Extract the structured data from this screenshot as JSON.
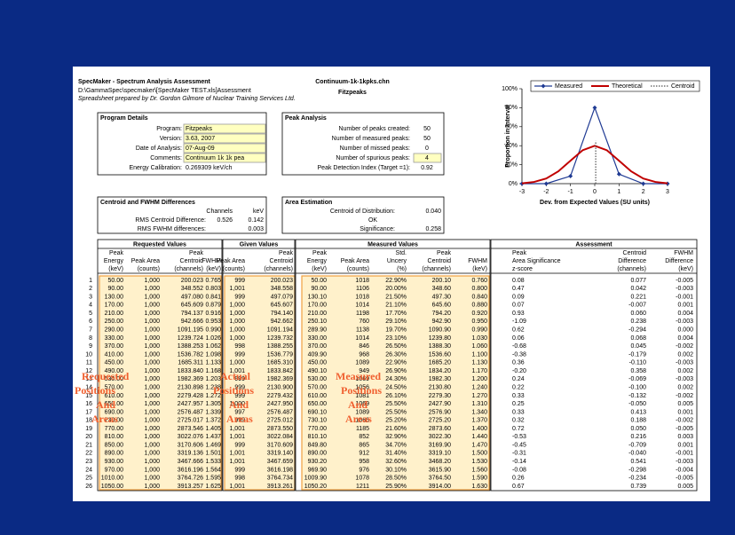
{
  "header": {
    "title": "SpecMaker - Spectrum Analysis Assessment",
    "path": "D:\\GammaSpec\\specmaker\\[SpecMaker TEST.xls]Assessment",
    "credit": "Spreadsheet prepared by Dr. Gordon Gilmore of Nuclear Training Services Ltd.",
    "file": "Continuum-1k-1kpks.chn",
    "program": "Fitzpeaks"
  },
  "program_details": {
    "title": "Program Details",
    "rows": [
      [
        "Program:",
        "Fitzpeaks"
      ],
      [
        "Version:",
        "3.63, 2007"
      ],
      [
        "Date of Analysis:",
        "07-Aug-09"
      ],
      [
        "Comments:",
        "Continuum 1k 1k pea"
      ],
      [
        "Energy Calibration:",
        "0.269309 keV/ch"
      ]
    ]
  },
  "peak_analysis": {
    "title": "Peak Analysis",
    "rows": [
      [
        "Number of peaks created:",
        "50"
      ],
      [
        "Number of measured peaks:",
        "50"
      ],
      [
        "Number of missed peaks:",
        "0"
      ],
      [
        "Number of spurious peaks:",
        "4"
      ],
      [
        "Peak Detection Index (Target =1):",
        "0.92"
      ]
    ]
  },
  "differences": {
    "title": "Centroid and FWHM Differences",
    "channels": "Channels",
    "kev": "keV",
    "centroid_label": "RMS Centroid Difference:",
    "centroid_channels": "0.526",
    "centroid_kev": "0.142",
    "fwhm_label": "RMS FWHM differences:",
    "fwhm_kev": "0.003"
  },
  "area_estimation": {
    "title": "Area Estimation",
    "centroid_label": "Centroid of Distribution:",
    "centroid": "0.040",
    "status": "OK",
    "significance_label": "Significance:",
    "significance": "0.258"
  },
  "table": {
    "groups": [
      "Requested Values",
      "Given Values",
      "Measured Values",
      "Assessment"
    ],
    "columns": [
      [
        "Peak",
        "Energy",
        "(keV)"
      ],
      [
        "Peak Area",
        "(counts)"
      ],
      [
        "Peak",
        "Centroid",
        "(channels)"
      ],
      [
        "FWHM",
        "(keV)"
      ],
      [
        "Peak Area",
        "(counts)"
      ],
      [
        "Peak",
        "Centroid",
        "(channels)"
      ],
      [
        "Peak",
        "Energy",
        "(keV)"
      ],
      [
        "Peak Area",
        "(counts)"
      ],
      [
        "Std.",
        "Uncery",
        "(%)"
      ],
      [
        "Peak",
        "Centroid",
        "(channels)"
      ],
      [
        "FWHM",
        "(keV)"
      ],
      [
        "Peak",
        "Area Significance",
        "z-score"
      ],
      [
        "Centroid",
        "Difference",
        "(channels)"
      ],
      [
        "FWHM",
        "Difference",
        "(keV)"
      ]
    ],
    "rows": [
      [
        "1",
        "50.00",
        "1,000",
        "200.023",
        "0.765",
        "999",
        "200.023",
        "50.00",
        "1018",
        "22.90%",
        "200.10",
        "0.760",
        "0.08",
        "0.077",
        "-0.005"
      ],
      [
        "2",
        "90.00",
        "1,000",
        "348.552",
        "0.803",
        "1,001",
        "348.558",
        "90.00",
        "1106",
        "20.00%",
        "348.60",
        "0.800",
        "0.47",
        "0.042",
        "-0.003"
      ],
      [
        "3",
        "130.00",
        "1,000",
        "497.080",
        "0.841",
        "999",
        "497.079",
        "130.10",
        "1018",
        "21.50%",
        "497.30",
        "0.840",
        "0.09",
        "0.221",
        "-0.001"
      ],
      [
        "4",
        "170.00",
        "1,000",
        "645.609",
        "0.879",
        "1,000",
        "645.607",
        "170.00",
        "1014",
        "21.10%",
        "645.60",
        "0.880",
        "0.07",
        "-0.007",
        "0.001"
      ],
      [
        "5",
        "210.00",
        "1,000",
        "794.137",
        "0.916",
        "1,000",
        "794.140",
        "210.00",
        "1198",
        "17.70%",
        "794.20",
        "0.920",
        "0.93",
        "0.060",
        "0.004"
      ],
      [
        "6",
        "250.00",
        "1,000",
        "942.666",
        "0.953",
        "1,000",
        "942.662",
        "250.10",
        "760",
        "29.10%",
        "942.90",
        "0.950",
        "-1.09",
        "0.238",
        "-0.003"
      ],
      [
        "7",
        "290.00",
        "1,000",
        "1091.195",
        "0.990",
        "1,000",
        "1091.194",
        "289.90",
        "1138",
        "19.70%",
        "1090.90",
        "0.990",
        "0.62",
        "-0.294",
        "0.000"
      ],
      [
        "8",
        "330.00",
        "1,000",
        "1239.724",
        "1.026",
        "1,000",
        "1239.732",
        "330.00",
        "1014",
        "23.10%",
        "1239.80",
        "1.030",
        "0.06",
        "0.068",
        "0.004"
      ],
      [
        "9",
        "370.00",
        "1,000",
        "1388.253",
        "1.062",
        "998",
        "1388.255",
        "370.00",
        "846",
        "26.50%",
        "1388.30",
        "1.060",
        "-0.68",
        "0.045",
        "-0.002"
      ],
      [
        "10",
        "410.00",
        "1,000",
        "1536.782",
        "1.098",
        "999",
        "1536.779",
        "409.90",
        "968",
        "26.30%",
        "1536.60",
        "1.100",
        "-0.38",
        "-0.179",
        "0.002"
      ],
      [
        "11",
        "450.00",
        "1,000",
        "1685.311",
        "1.133",
        "1,000",
        "1685.310",
        "450.00",
        "1089",
        "22.90%",
        "1685.20",
        "1.130",
        "0.36",
        "-0.110",
        "-0.003"
      ],
      [
        "12",
        "490.00",
        "1,000",
        "1833.840",
        "1.168",
        "1,001",
        "1833.842",
        "490.10",
        "949",
        "26.90%",
        "1834.20",
        "1.170",
        "-0.20",
        "0.358",
        "0.002"
      ],
      [
        "13",
        "530.00",
        "1,000",
        "1982.369",
        "1.203",
        "999",
        "1982.369",
        "530.00",
        "1069",
        "24.30%",
        "1982.30",
        "1.200",
        "0.24",
        "-0.069",
        "-0.003"
      ],
      [
        "14",
        "570.00",
        "1,000",
        "2130.898",
        "1.238",
        "999",
        "2130.900",
        "570.00",
        "1056",
        "24.50%",
        "2130.80",
        "1.240",
        "0.22",
        "-0.100",
        "0.002"
      ],
      [
        "15",
        "610.00",
        "1,000",
        "2279.428",
        "1.272",
        "999",
        "2279.432",
        "610.00",
        "1081",
        "26.10%",
        "2279.30",
        "1.270",
        "0.33",
        "-0.132",
        "-0.002"
      ],
      [
        "16",
        "650.00",
        "1,000",
        "2427.957",
        "1.305",
        "1,000",
        "2427.950",
        "650.00",
        "1069",
        "25.50%",
        "2427.90",
        "1.310",
        "0.25",
        "-0.050",
        "0.005"
      ],
      [
        "17",
        "690.00",
        "1,000",
        "2576.487",
        "1.339",
        "997",
        "2576.487",
        "690.10",
        "1089",
        "25.50%",
        "2576.90",
        "1.340",
        "0.33",
        "0.413",
        "0.001"
      ],
      [
        "18",
        "730.00",
        "1,000",
        "2725.017",
        "1.372",
        "999",
        "2725.012",
        "730.10",
        "1066",
        "25.20%",
        "2725.20",
        "1.370",
        "0.32",
        "0.188",
        "-0.002"
      ],
      [
        "19",
        "770.00",
        "1,000",
        "2873.546",
        "1.405",
        "1,001",
        "2873.550",
        "770.00",
        "1185",
        "21.60%",
        "2873.60",
        "1.400",
        "0.72",
        "0.050",
        "-0.005"
      ],
      [
        "20",
        "810.00",
        "1,000",
        "3022.076",
        "1.437",
        "1,001",
        "3022.084",
        "810.10",
        "852",
        "32.90%",
        "3022.30",
        "1.440",
        "-0.53",
        "0.216",
        "0.003"
      ],
      [
        "21",
        "850.00",
        "1,000",
        "3170.606",
        "1.469",
        "999",
        "3170.609",
        "849.80",
        "865",
        "34.70%",
        "3169.90",
        "1.470",
        "-0.45",
        "-0.709",
        "0.001"
      ],
      [
        "22",
        "890.00",
        "1,000",
        "3319.136",
        "1.501",
        "1,001",
        "3319.140",
        "890.00",
        "912",
        "31.40%",
        "3319.10",
        "1.500",
        "-0.31",
        "-0.040",
        "-0.001"
      ],
      [
        "23",
        "930.00",
        "1,000",
        "3467.666",
        "1.533",
        "1,001",
        "3467.659",
        "930.20",
        "958",
        "32.60%",
        "3468.20",
        "1.530",
        "-0.14",
        "0.541",
        "-0.003"
      ],
      [
        "24",
        "970.00",
        "1,000",
        "3616.196",
        "1.564",
        "999",
        "3616.198",
        "969.90",
        "976",
        "30.10%",
        "3615.90",
        "1.560",
        "-0.08",
        "-0.298",
        "-0.004"
      ],
      [
        "25",
        "1010.00",
        "1,000",
        "3764.726",
        "1.595",
        "998",
        "3764.734",
        "1009.90",
        "1078",
        "28.50%",
        "3764.50",
        "1.590",
        "0.26",
        "-0.234",
        "-0.005"
      ],
      [
        "26",
        "1050.00",
        "1,000",
        "3913.257",
        "1.625",
        "1,001",
        "3913.261",
        "1050.20",
        "1211",
        "25.90%",
        "3914.00",
        "1.630",
        "0.67",
        "0.739",
        "0.005"
      ]
    ]
  },
  "annotations": [
    [
      "Requested",
      "Positions",
      "And",
      "Areas"
    ],
    [
      "Actual",
      "Positions",
      "And",
      "Areas"
    ],
    [
      "Measured",
      "Positions",
      "And",
      "Areas"
    ]
  ],
  "chart_data": {
    "type": "line",
    "x_label": "Dev. from Expected Values (SU units)",
    "y_label": "Proportion in Interval",
    "xlim": [
      -3,
      3
    ],
    "xticks": [
      -3,
      -2,
      -1,
      0,
      1,
      2,
      3
    ],
    "ylim": [
      0,
      100
    ],
    "yticks": [
      {
        "value": 0,
        "label": "0%"
      },
      {
        "value": 20,
        "label": "20%"
      },
      {
        "value": 40,
        "label": "40%"
      },
      {
        "value": 60,
        "label": "60%"
      },
      {
        "value": 80,
        "label": "80%"
      },
      {
        "value": 100,
        "label": "100%"
      }
    ],
    "legend": "top",
    "series": [
      {
        "name": "Measured",
        "color": "#1f3a93",
        "x": [
          -3,
          -2,
          -1,
          0,
          1,
          2,
          3
        ],
        "values": [
          0,
          0,
          8,
          80,
          10,
          0,
          0
        ],
        "marker": "diamond"
      },
      {
        "name": "Theoretical",
        "color": "#c00000",
        "x": [
          -3,
          -2.5,
          -2,
          -1.5,
          -1,
          -0.5,
          0,
          0.5,
          1,
          1.5,
          2,
          2.5,
          3
        ],
        "values": [
          0.4,
          1.8,
          5.4,
          13,
          24.2,
          35.2,
          39.9,
          35.2,
          24.2,
          13,
          5.4,
          1.8,
          0.4
        ]
      },
      {
        "name": "Centroid",
        "color": "#555555",
        "x": [
          0.04,
          0.04
        ],
        "values": [
          0,
          45
        ],
        "line_style": "dotted"
      }
    ]
  }
}
